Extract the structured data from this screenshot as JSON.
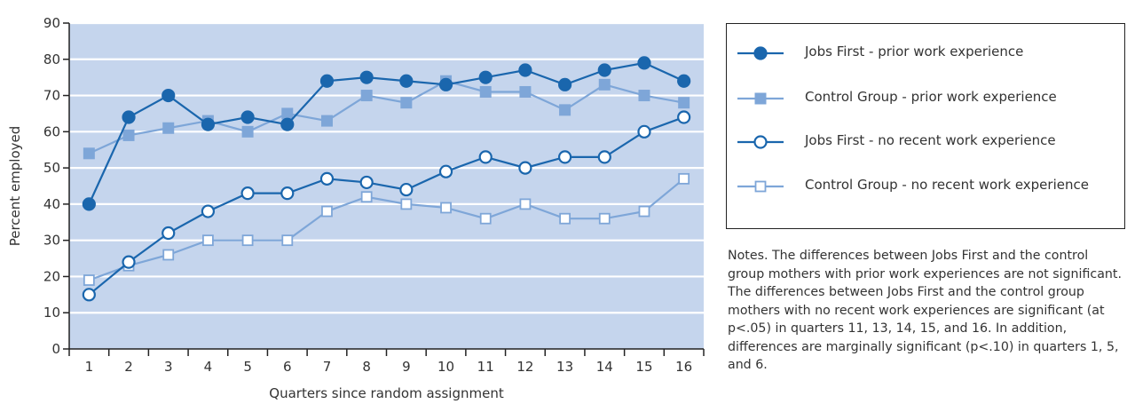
{
  "chart_data": {
    "type": "line",
    "title": "",
    "xlabel": "Quarters since random assignment",
    "ylabel": "Percent employed",
    "x": [
      1,
      2,
      3,
      4,
      5,
      6,
      7,
      8,
      9,
      10,
      11,
      12,
      13,
      14,
      15,
      16
    ],
    "ylim": [
      0,
      90
    ],
    "yticks": [
      0,
      10,
      20,
      30,
      40,
      50,
      60,
      70,
      80,
      90
    ],
    "grid": true,
    "legend_position": "right",
    "series": [
      {
        "name": "Jobs First - prior work experience",
        "marker": "filled-circle",
        "color": "#1a66ad",
        "values": [
          40,
          64,
          70,
          62,
          64,
          62,
          74,
          75,
          74,
          73,
          75,
          77,
          73,
          77,
          79,
          74
        ]
      },
      {
        "name": "Control Group - prior work experience",
        "marker": "filled-square",
        "color": "#7ea6d8",
        "values": [
          54,
          59,
          61,
          63,
          60,
          65,
          63,
          70,
          68,
          74,
          71,
          71,
          66,
          73,
          70,
          68
        ]
      },
      {
        "name": "Jobs First - no recent work experience",
        "marker": "open-circle",
        "color": "#1a66ad",
        "values": [
          15,
          24,
          32,
          38,
          43,
          43,
          47,
          46,
          44,
          49,
          53,
          50,
          53,
          53,
          60,
          64
        ]
      },
      {
        "name": "Control Group - no recent work experience",
        "marker": "open-square",
        "color": "#7ea6d8",
        "values": [
          19,
          23,
          26,
          30,
          30,
          30,
          38,
          42,
          40,
          39,
          36,
          40,
          36,
          36,
          38,
          47
        ]
      }
    ],
    "plot_background": "#c5d5ed"
  },
  "notes": "Notes. The differences between Jobs First and the control group mothers with prior work experiences are not significant. The differences between Jobs First and the control group mothers with no recent work experiences are significant (at p<.05) in quarters 11, 13, 14, 15, and 16. In addition, differences are marginally significant (p<.10) in quarters 1, 5, and 6."
}
